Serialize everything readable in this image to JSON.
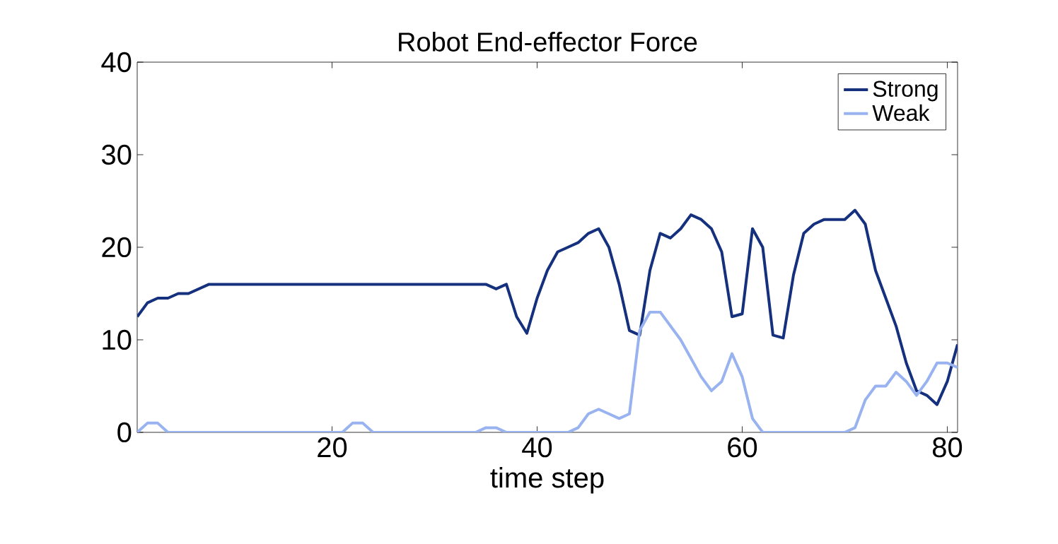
{
  "chart_data": {
    "type": "line",
    "title": "Robot End-effector Force",
    "xlabel": "time step",
    "x": [
      1,
      2,
      3,
      4,
      5,
      6,
      7,
      8,
      9,
      10,
      11,
      12,
      13,
      14,
      15,
      16,
      17,
      18,
      19,
      20,
      21,
      22,
      23,
      24,
      25,
      26,
      27,
      28,
      29,
      30,
      31,
      32,
      33,
      34,
      35,
      36,
      37,
      38,
      39,
      40,
      41,
      42,
      43,
      44,
      45,
      46,
      47,
      48,
      49,
      50,
      51,
      52,
      53,
      54,
      55,
      56,
      57,
      58,
      59,
      60,
      61,
      62,
      63,
      64,
      65,
      66,
      67,
      68,
      69,
      70,
      71,
      72,
      73,
      74,
      75,
      76,
      77,
      78,
      79,
      80,
      81
    ],
    "series": [
      {
        "name": "Strong",
        "color": "#15317e",
        "values": [
          12.5,
          14,
          14.5,
          14.5,
          15,
          15,
          15.5,
          16,
          16,
          16,
          16,
          16,
          16,
          16,
          16,
          16,
          16,
          16,
          16,
          16,
          16,
          16,
          16,
          16,
          16,
          16,
          16,
          16,
          16,
          16,
          16,
          16,
          16,
          16,
          16,
          15.5,
          16,
          12.5,
          10.7,
          14.5,
          17.5,
          19.5,
          20,
          20.5,
          21.5,
          22,
          20,
          16,
          11,
          10.5,
          17.5,
          21.5,
          21,
          22,
          23.5,
          23,
          22,
          19.5,
          12.5,
          12.8,
          22,
          20,
          10.5,
          10.2,
          17,
          21.5,
          22.5,
          23,
          23,
          23,
          24,
          22.5,
          17.5,
          14.5,
          11.5,
          7.5,
          4.5,
          4,
          3,
          5.5,
          9.5
        ]
      },
      {
        "name": "Weak",
        "color": "#99b2f0",
        "values": [
          0,
          1,
          1,
          0,
          0,
          0,
          0,
          0,
          0,
          0,
          0,
          0,
          0,
          0,
          0,
          0,
          0,
          0,
          0,
          0,
          0,
          1,
          1,
          0,
          0,
          0,
          0,
          0,
          0,
          0,
          0,
          0,
          0,
          0,
          0.5,
          0.5,
          0,
          0,
          0,
          0,
          0,
          0,
          0,
          0.5,
          2,
          2.5,
          2,
          1.5,
          2,
          11,
          13,
          13,
          11.5,
          10,
          8,
          6,
          4.5,
          5.5,
          8.5,
          6,
          1.5,
          0,
          0,
          0,
          0,
          0,
          0,
          0,
          0,
          0,
          0.5,
          3.5,
          5,
          5,
          6.5,
          5.5,
          4,
          5.5,
          7.5,
          7.5,
          7
        ]
      }
    ],
    "xlim": [
      1,
      81
    ],
    "ylim": [
      0,
      40
    ],
    "xticks": [
      20,
      40,
      60,
      80
    ],
    "yticks": [
      0,
      10,
      20,
      30,
      40
    ],
    "legend": "top right",
    "grid": false,
    "line_style": "solid",
    "marker": "none"
  }
}
